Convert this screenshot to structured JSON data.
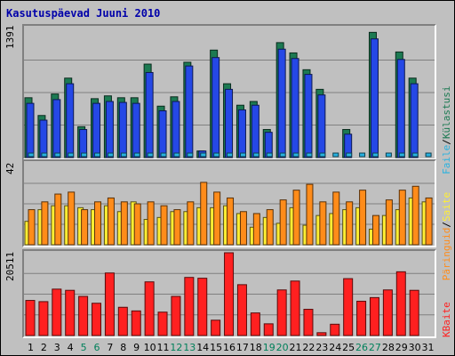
{
  "chart_data": {
    "type": "bar",
    "title": "Kasutuspäevad Juuni 2010",
    "colors": {
      "visits": "#1c7a52",
      "pages": "#2548e6",
      "files": "#27b2e0",
      "hits_files": "#ffee33",
      "hits": "#ff8c1a",
      "kbytes": "#ff2020",
      "axis_label_normal": "#000000",
      "axis_label_weekend": "#00805a",
      "background": "#c0c0c0"
    },
    "categories": [
      "1",
      "2",
      "3",
      "4",
      "5",
      "6",
      "7",
      "8",
      "9",
      "10",
      "11",
      "12",
      "13",
      "14",
      "15",
      "16",
      "17",
      "18",
      "19",
      "20",
      "21",
      "22",
      "23",
      "24",
      "25",
      "26",
      "27",
      "28",
      "29",
      "30",
      "31"
    ],
    "weekend_days": [
      "5",
      "6",
      "12",
      "13",
      "19",
      "20",
      "26",
      "27"
    ],
    "panels": [
      {
        "name": "visits-files",
        "ymax_label": "1391",
        "ylim": [
          0,
          1391
        ],
        "series": [
          {
            "name": "Külastusi",
            "color": "#1c7a52",
            "values": [
              640,
              450,
              680,
              850,
              330,
              630,
              660,
              640,
              640,
              1000,
              550,
              650,
              1020,
              70,
              1150,
              790,
              560,
              600,
              300,
              1230,
              1120,
              940,
              730,
              0,
              300,
              0,
              1340,
              0,
              1130,
              850,
              0
            ]
          },
          {
            "name": "Faile",
            "color": "#2548e6",
            "values": [
              580,
              400,
              620,
              790,
              300,
              580,
              600,
              590,
              580,
              910,
              500,
              600,
              980,
              70,
              1070,
              730,
              510,
              560,
              270,
              1160,
              1060,
              890,
              670,
              0,
              250,
              0,
              1270,
              0,
              1050,
              790,
              0
            ]
          }
        ]
      },
      {
        "name": "hits",
        "ymax_label": "42",
        "ylim": [
          0,
          42
        ],
        "series": [
          {
            "name": "Päringuid",
            "color": "#ff8c1a",
            "values": [
              18,
              22,
              26,
              27,
              18,
              22,
              24,
              22,
              21,
              22,
              20,
              18,
              22,
              32,
              27,
              24,
              17,
              16,
              18,
              23,
              28,
              31,
              22,
              27,
              22,
              28,
              15,
              23,
              28,
              30,
              24
            ]
          },
          {
            "name": "Faile",
            "color": "#ffee33",
            "values": [
              12,
              18,
              20,
              20,
              19,
              18,
              20,
              17,
              22,
              13,
              14,
              17,
              17,
              19,
              19,
              20,
              16,
              9,
              14,
              11,
              19,
              10,
              15,
              16,
              18,
              19,
              8,
              15,
              18,
              24,
              22
            ]
          }
        ]
      },
      {
        "name": "kbytes",
        "ymax_label": "20511",
        "ylim": [
          0,
          20511
        ],
        "series": [
          {
            "name": "KBaite",
            "color": "#ff2020",
            "values": [
              8700,
              8400,
              11500,
              11200,
              9700,
              8000,
              15500,
              7000,
              6100,
              13300,
              5800,
              9700,
              14400,
              14200,
              3800,
              20511,
              12600,
              5600,
              2900,
              11300,
              13500,
              6500,
              700,
              2800,
              14100,
              8500,
              9400,
              11300,
              15800,
              11200,
              0
            ]
          }
        ]
      }
    ],
    "legend": {
      "pages": "Päringuid",
      "files": "Faile",
      "visits": "Külastusi",
      "sites": "Saite",
      "sep": "/",
      "kbytes": "KBaite"
    }
  }
}
